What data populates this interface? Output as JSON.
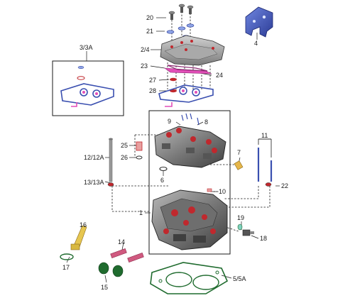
{
  "callouts": {
    "c1": "1",
    "c2_4": "2/4",
    "c3_3a": "3/3A",
    "c4": "4",
    "c5_5a": "5/5A",
    "c6": "6",
    "c7": "7",
    "c8": "8",
    "c9": "9",
    "c10": "10",
    "c11": "11",
    "c12_12a": "12/12A",
    "c13_13a": "13/13A",
    "c14": "14",
    "c15": "15",
    "c16": "16",
    "c17": "17",
    "c18": "18",
    "c19": "19",
    "c20": "20",
    "c21": "21",
    "c22": "22",
    "c23": "23",
    "c24": "24",
    "c25": "25",
    "c26": "26",
    "c27": "27",
    "c28": "28"
  },
  "colors": {
    "body": "#7a7a7a",
    "body_dark": "#4a4a4a",
    "accent_red": "#c0282d",
    "gasket_blue": "#3a4fb0",
    "gasket_pink": "#e24fb8",
    "seal_green": "#1f6b2e",
    "line": "#1a1a1a"
  }
}
